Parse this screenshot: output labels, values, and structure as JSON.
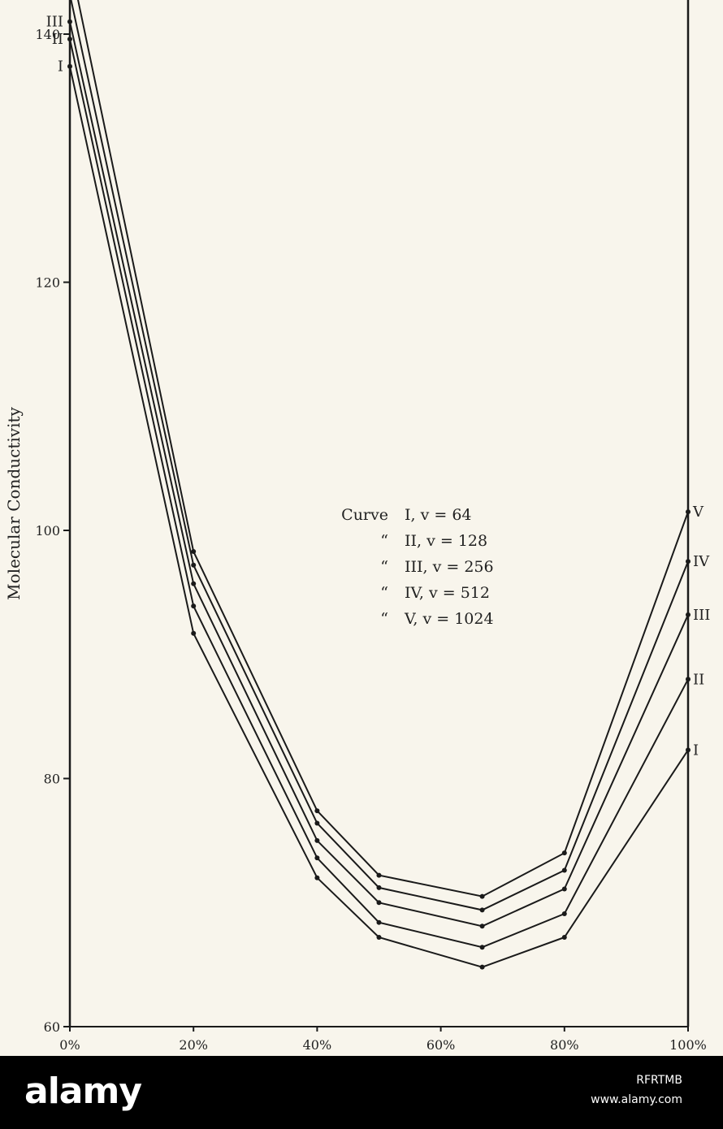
{
  "chart_data": {
    "type": "line",
    "ylabel": "Molecular Conductivity",
    "x": [
      0,
      20,
      40,
      50,
      66.7,
      80,
      100
    ],
    "x_ticks": [
      "0%",
      "20%",
      "40%",
      "60%",
      "80%",
      "100%"
    ],
    "x_tick_values": [
      0,
      20,
      40,
      60,
      80,
      100
    ],
    "y_ticks": [
      "60",
      "80",
      "100",
      "120",
      "140"
    ],
    "y_tick_values": [
      60,
      80,
      100,
      120,
      140
    ],
    "ylim": [
      60,
      142
    ],
    "xlim": [
      0,
      100
    ],
    "grid": false,
    "legend": {
      "placement": "center",
      "lines": [
        {
          "prefix": "Curve",
          "label": "I, v = 64"
        },
        {
          "prefix": "“",
          "label": "II, v = 128"
        },
        {
          "prefix": "“",
          "label": "III, v = 256"
        },
        {
          "prefix": "“",
          "label": "IV, v = 512"
        },
        {
          "prefix": "“",
          "label": "V, v = 1024"
        }
      ]
    },
    "series": [
      {
        "name": "I",
        "values": [
          137.4,
          91.7,
          72.0,
          67.2,
          64.8,
          67.2,
          82.3
        ]
      },
      {
        "name": "II",
        "values": [
          139.6,
          93.9,
          73.6,
          68.4,
          66.4,
          69.1,
          88.0
        ]
      },
      {
        "name": "III",
        "values": [
          141.0,
          95.7,
          75.0,
          70.0,
          68.1,
          71.1,
          93.2
        ]
      },
      {
        "name": "IV",
        "values": [
          143.2,
          97.2,
          76.4,
          71.2,
          69.4,
          72.6,
          97.5
        ]
      },
      {
        "name": "V",
        "values": [
          145.9,
          98.3,
          77.4,
          72.2,
          70.5,
          74.0,
          101.5
        ]
      }
    ]
  },
  "banner": {
    "logo": "alamy",
    "image_id": "RFRTMB",
    "url": "www.alamy.com"
  }
}
